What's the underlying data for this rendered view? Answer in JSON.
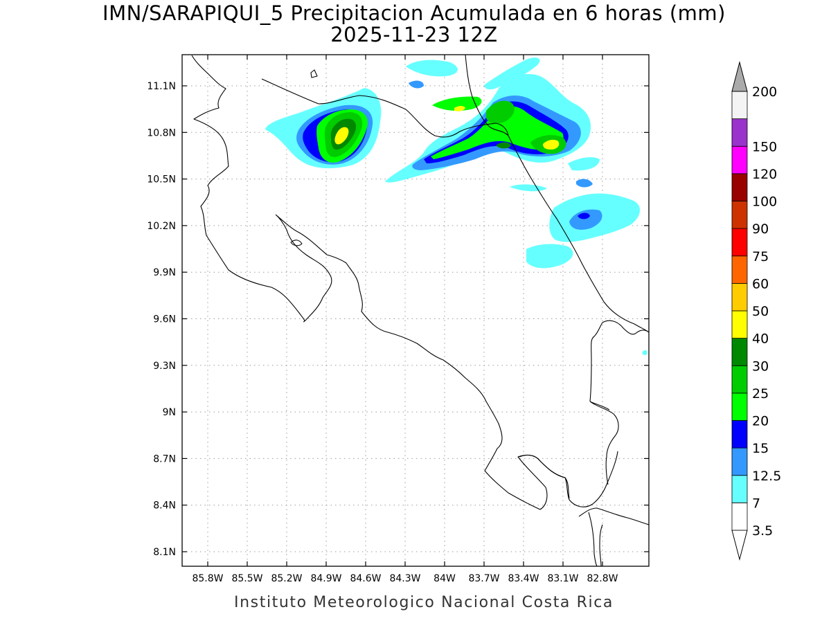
{
  "title": {
    "line1": "IMN/SARAPIQUI_5 Precipitacion Acumulada en 6 horas (mm)",
    "line2": "2025-11-23 12Z"
  },
  "footer": "Instituto Meteorologico Nacional Costa Rica",
  "map": {
    "region": "Costa Rica",
    "lon_range": [
      -86.0,
      -83.0
    ],
    "lat_range": [
      8.0,
      11.3
    ],
    "lat_ticks": [
      {
        "value": 11.1,
        "label": "11.1N"
      },
      {
        "value": 10.8,
        "label": "10.8N"
      },
      {
        "value": 10.5,
        "label": "10.5N"
      },
      {
        "value": 10.2,
        "label": "10.2N"
      },
      {
        "value": 9.9,
        "label": "9.9N"
      },
      {
        "value": 9.6,
        "label": "9.6N"
      },
      {
        "value": 9.3,
        "label": "9.3N"
      },
      {
        "value": 9.0,
        "label": "9N"
      },
      {
        "value": 8.7,
        "label": "8.7N"
      },
      {
        "value": 8.4,
        "label": "8.4N"
      },
      {
        "value": 8.1,
        "label": "8.1N"
      }
    ],
    "lon_ticks": [
      {
        "value": -85.8,
        "label": "85.8W"
      },
      {
        "value": -85.5,
        "label": "85.5W"
      },
      {
        "value": -85.2,
        "label": "85.2W"
      },
      {
        "value": -84.9,
        "label": "84.9W"
      },
      {
        "value": -84.6,
        "label": "84.6W"
      },
      {
        "value": -84.3,
        "label": "84.3W"
      },
      {
        "value": -84.0,
        "label": "84W"
      },
      {
        "value": -83.7,
        "label": "83.7W"
      },
      {
        "value": -83.4,
        "label": "83.4W"
      },
      {
        "value": -83.1,
        "label": "83.1W"
      },
      {
        "value": -82.8,
        "label": "82.8W"
      }
    ],
    "grid": true
  },
  "colorbar": {
    "unit": "mm",
    "levels": [
      {
        "label": "3.5",
        "color": "#ffffff"
      },
      {
        "label": "7",
        "color": "#66ffff"
      },
      {
        "label": "12.5",
        "color": "#3399ff"
      },
      {
        "label": "15",
        "color": "#0000ff"
      },
      {
        "label": "20",
        "color": "#00ff00"
      },
      {
        "label": "25",
        "color": "#00cc00"
      },
      {
        "label": "30",
        "color": "#008800"
      },
      {
        "label": "40",
        "color": "#ffff00"
      },
      {
        "label": "50",
        "color": "#ffcc00"
      },
      {
        "label": "60",
        "color": "#ff6600"
      },
      {
        "label": "75",
        "color": "#ff0000"
      },
      {
        "label": "90",
        "color": "#cc3300"
      },
      {
        "label": "100",
        "color": "#990000"
      },
      {
        "label": "120",
        "color": "#ff00ff"
      },
      {
        "label": "150",
        "color": "#9933cc"
      },
      {
        "label": "200",
        "color": "#f4f4f4"
      }
    ],
    "over_color": "#aaaaaa"
  }
}
